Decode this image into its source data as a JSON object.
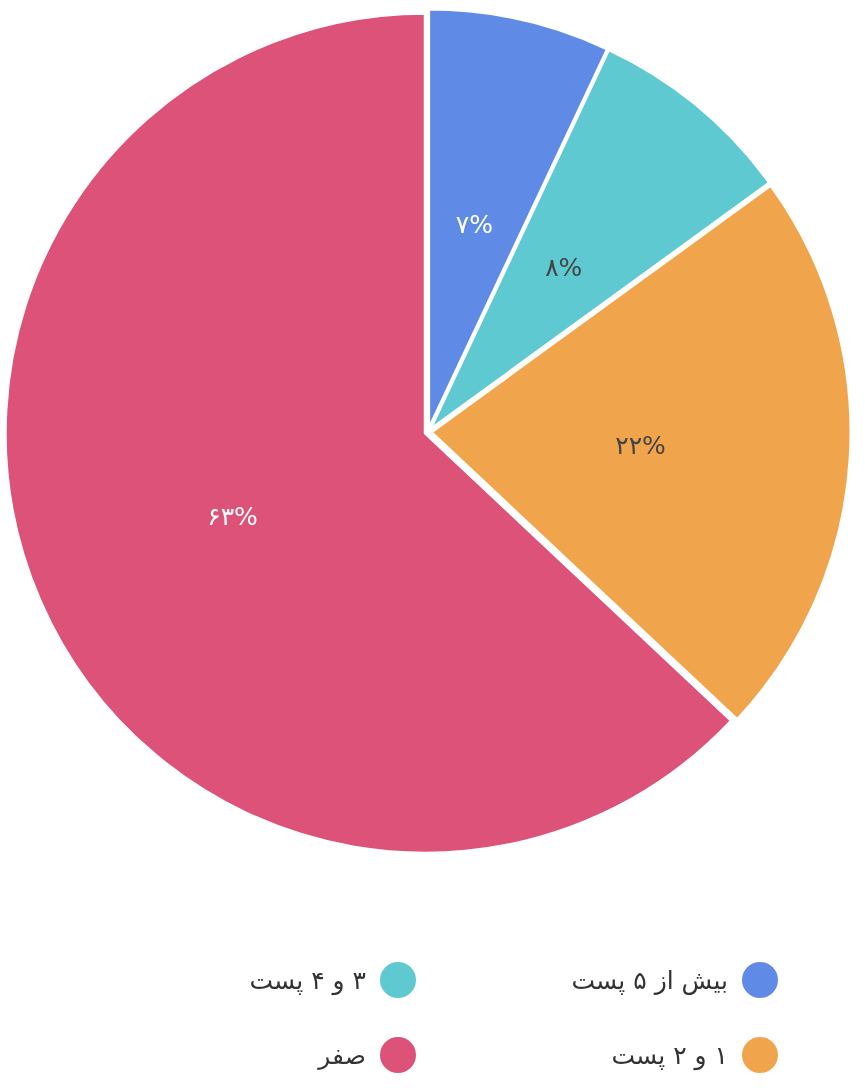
{
  "chart_data": {
    "type": "pie",
    "categories": [
      "بیش از ۵ پست",
      "۳ و ۴ پست",
      "۱ و ۲ پست",
      "صفر"
    ],
    "values": [
      7,
      8,
      22,
      63
    ],
    "colors": [
      "#5f8be6",
      "#5ec9d1",
      "#f0a44c",
      "#dc5279"
    ],
    "value_labels": [
      "۷%",
      "۸%",
      "۲۲%",
      "۶۳%"
    ],
    "legend": "bottom"
  }
}
